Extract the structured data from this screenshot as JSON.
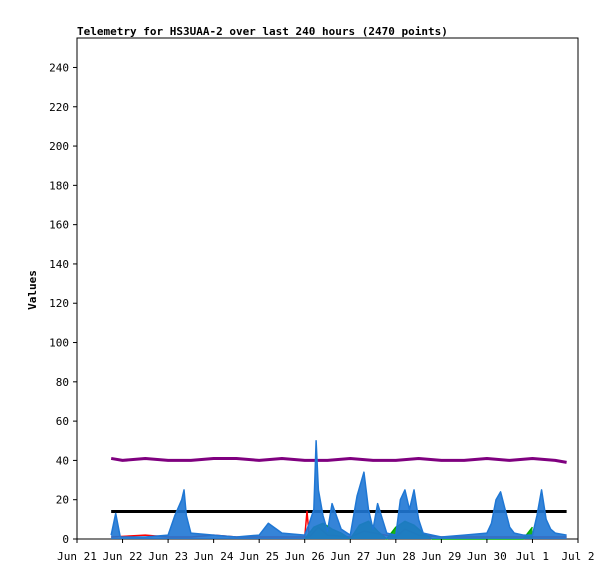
{
  "chart_data": {
    "type": "line",
    "title": "Telemetry for HS3UAA-2 over last 240 hours (2470 points)",
    "xlabel": "",
    "ylabel": "Values",
    "ylim": [
      0,
      255
    ],
    "xlim": [
      "2024-06-21 00:00",
      "2024-07-02 00:00"
    ],
    "y_ticks": [
      0,
      20,
      40,
      60,
      80,
      100,
      120,
      140,
      160,
      180,
      200,
      220,
      240
    ],
    "x_tick_labels": [
      "Jun 21",
      "Jun 22",
      "Jun 23",
      "Jun 24",
      "Jun 25",
      "Jun 26",
      "Jun 27",
      "Jun 28",
      "Jun 29",
      "Jun 30",
      "Jul 1",
      "Jul 2"
    ],
    "grid": false,
    "legend": "none",
    "series": [
      {
        "color": "#7f007f",
        "x_days": [
          0.75,
          1.0,
          1.5,
          2.0,
          2.5,
          3.0,
          3.5,
          4.0,
          4.5,
          5.0,
          5.5,
          6.0,
          6.5,
          7.0,
          7.5,
          8.0,
          8.5,
          9.0,
          9.5,
          10.0,
          10.5,
          10.75
        ],
        "values": [
          41,
          40,
          41,
          40,
          40,
          41,
          41,
          40,
          41,
          40,
          40,
          41,
          40,
          40,
          41,
          40,
          40,
          41,
          40,
          41,
          40,
          39
        ]
      },
      {
        "color": "#000000",
        "x_days": [
          0.75,
          10.75
        ],
        "values": [
          14,
          14
        ]
      },
      {
        "color": "#ff0000",
        "x_days": [
          0.75,
          1.5,
          2.0,
          2.5,
          3.0,
          3.5,
          4.0,
          4.5,
          5.0,
          5.05,
          5.1,
          5.3,
          5.5,
          6.0,
          6.3,
          7.0,
          7.2,
          7.5,
          8.0,
          8.5,
          9.0,
          9.5,
          10.0,
          10.75
        ],
        "values": [
          1,
          2,
          1,
          1,
          2,
          1,
          1,
          1,
          1,
          14,
          1,
          6,
          2,
          1,
          4,
          1,
          5,
          2,
          1,
          1,
          1,
          1,
          1,
          1
        ]
      },
      {
        "color": "#00aa00",
        "x_days": [
          5.0,
          5.2,
          5.4,
          5.6,
          5.8,
          6.0,
          6.2,
          6.4,
          6.6,
          6.8,
          7.0,
          7.2,
          7.4,
          7.6,
          7.8,
          8.0,
          9.8,
          10.0
        ],
        "values": [
          0,
          6,
          8,
          5,
          3,
          0,
          7,
          9,
          4,
          0,
          6,
          9,
          7,
          3,
          0,
          0,
          0,
          6
        ]
      },
      {
        "color": "#1f77d4",
        "x_days": [
          0.75,
          0.85,
          0.95,
          1.5,
          2.0,
          2.15,
          2.3,
          2.35,
          2.4,
          2.5,
          3.0,
          3.5,
          4.0,
          4.2,
          4.5,
          5.0,
          5.1,
          5.2,
          5.25,
          5.3,
          5.4,
          5.5,
          5.6,
          5.8,
          6.0,
          6.15,
          6.3,
          6.4,
          6.5,
          6.6,
          6.8,
          7.0,
          7.1,
          7.2,
          7.3,
          7.4,
          7.5,
          7.6,
          7.8,
          8.0,
          8.5,
          9.0,
          9.1,
          9.2,
          9.3,
          9.4,
          9.5,
          9.6,
          9.8,
          10.0,
          10.1,
          10.2,
          10.3,
          10.4,
          10.5,
          10.75
        ],
        "values": [
          2,
          13,
          1,
          1,
          2,
          12,
          20,
          25,
          12,
          3,
          2,
          1,
          2,
          8,
          3,
          2,
          8,
          15,
          50,
          25,
          12,
          4,
          18,
          5,
          2,
          22,
          34,
          15,
          5,
          18,
          3,
          2,
          20,
          25,
          15,
          25,
          10,
          3,
          2,
          1,
          2,
          3,
          8,
          20,
          24,
          15,
          6,
          3,
          2,
          2,
          12,
          25,
          10,
          5,
          3,
          2
        ]
      }
    ]
  }
}
